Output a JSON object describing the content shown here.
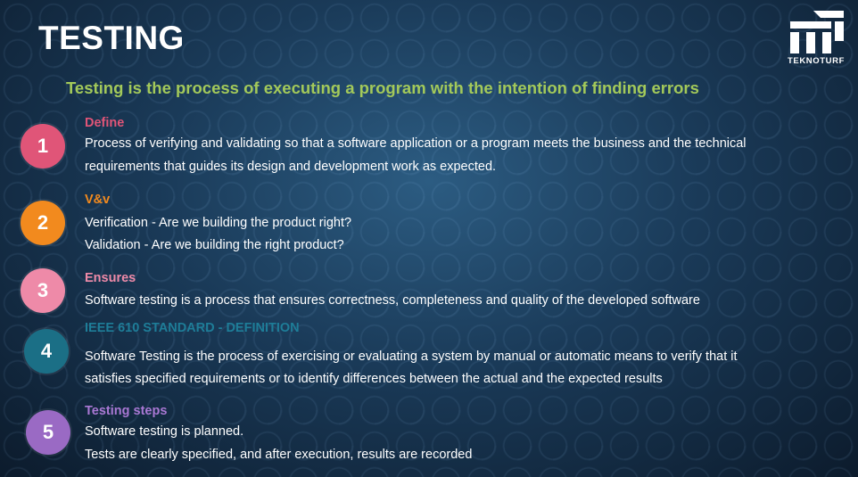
{
  "slide": {
    "title": "TESTING",
    "subtitle": "Testing is the process of executing a program with the intention of finding errors",
    "logo_text": "TEKNOTURF",
    "colors": {
      "subtitle": "#a3c95a",
      "step1": "#e05578",
      "step2": "#f28a1e",
      "step3": "#ee8aa8",
      "step4": "#1b6f86",
      "step5": "#9a6ac4"
    }
  },
  "items": [
    {
      "number": "1",
      "title": "Define",
      "lines": [
        "Process of verifying and validating so that a software application or a program meets the business and the technical",
        "requirements that guides its design and development work as expected."
      ]
    },
    {
      "number": "2",
      "title": "V&v",
      "lines": [
        "Verification - Are we building the product right?",
        "Validation -  Are we building the right product?"
      ]
    },
    {
      "number": "3",
      "title": "Ensures",
      "lines": [
        "Software testing is a process that ensures correctness, completeness and quality of the developed software"
      ]
    },
    {
      "number": "4",
      "title": "IEEE 610 STANDARD - DEFINITION",
      "lines": [
        "Software Testing is the process of exercising or evaluating a system by manual or automatic means to verify that it",
        "satisfies specified requirements or to identify differences between the actual and the expected results"
      ]
    },
    {
      "number": "5",
      "title": "Testing steps",
      "lines": [
        "Software testing is planned.",
        "Tests are clearly specified, and after execution, results are recorded"
      ]
    }
  ]
}
